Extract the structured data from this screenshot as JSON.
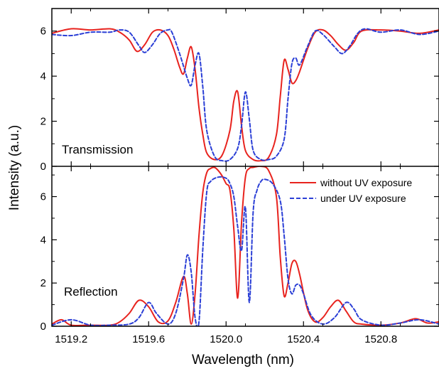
{
  "chart_data": {
    "type": "line",
    "xlabel": "Wavelength (nm)",
    "ylabel": "Intensity (a.u.)",
    "xlim": [
      1519.1,
      1521.1
    ],
    "x_ticks": [
      "1519.2",
      "1519.6",
      "1520.0",
      "1520.4",
      "1520.8"
    ],
    "legend": {
      "placement": "top-right of lower panel",
      "entries": [
        "without UV exposure",
        "under UV exposure"
      ]
    },
    "colors": {
      "without_uv": "#e8231e",
      "under_uv": "#2b3fd6"
    },
    "panels": [
      {
        "label": "Transmission",
        "ylim": [
          0,
          7
        ],
        "y_ticks": [
          "0",
          "2",
          "4",
          "6"
        ],
        "series": [
          {
            "name": "without UV exposure",
            "style": "solid",
            "x": [
              1519.1,
              1519.2,
              1519.3,
              1519.4,
              1519.45,
              1519.5,
              1519.54,
              1519.58,
              1519.62,
              1519.66,
              1519.7,
              1519.73,
              1519.76,
              1519.78,
              1519.8,
              1519.82,
              1519.84,
              1519.86,
              1519.88,
              1519.9,
              1519.94,
              1519.98,
              1520.02,
              1520.04,
              1520.06,
              1520.08,
              1520.1,
              1520.14,
              1520.18,
              1520.22,
              1520.26,
              1520.28,
              1520.3,
              1520.32,
              1520.34,
              1520.36,
              1520.38,
              1520.42,
              1520.46,
              1520.5,
              1520.54,
              1520.58,
              1520.62,
              1520.66,
              1520.7,
              1520.8,
              1520.9,
              1521.0,
              1521.1
            ],
            "y": [
              5.9,
              6.1,
              6.05,
              6.1,
              5.95,
              5.6,
              5.1,
              5.4,
              5.95,
              6.05,
              5.8,
              5.2,
              4.4,
              4.1,
              4.8,
              5.3,
              4.3,
              2.6,
              1.4,
              0.6,
              0.3,
              0.5,
              1.6,
              2.9,
              3.3,
              1.8,
              0.7,
              0.3,
              0.25,
              0.4,
              1.4,
              3.1,
              4.7,
              4.3,
              3.7,
              3.8,
              4.2,
              5.2,
              5.95,
              6.05,
              5.8,
              5.4,
              5.15,
              5.5,
              6.0,
              6.05,
              6.0,
              5.9,
              6.05
            ]
          },
          {
            "name": "under UV exposure",
            "style": "dashed",
            "x": [
              1519.1,
              1519.2,
              1519.3,
              1519.4,
              1519.45,
              1519.5,
              1519.55,
              1519.58,
              1519.62,
              1519.66,
              1519.7,
              1519.72,
              1519.76,
              1519.8,
              1519.82,
              1519.84,
              1519.86,
              1519.88,
              1519.9,
              1519.94,
              1519.98,
              1520.02,
              1520.06,
              1520.08,
              1520.1,
              1520.12,
              1520.14,
              1520.18,
              1520.22,
              1520.26,
              1520.3,
              1520.32,
              1520.34,
              1520.36,
              1520.38,
              1520.42,
              1520.46,
              1520.5,
              1520.56,
              1520.6,
              1520.64,
              1520.68,
              1520.72,
              1520.8,
              1520.9,
              1521.0,
              1521.1
            ],
            "y": [
              5.85,
              5.8,
              5.95,
              5.95,
              6.05,
              5.95,
              5.35,
              5.05,
              5.4,
              5.9,
              6.05,
              5.95,
              5.0,
              3.9,
              3.6,
              4.5,
              5.0,
              3.5,
              1.6,
              0.45,
              0.25,
              0.3,
              0.8,
              1.8,
              3.3,
              2.1,
              0.7,
              0.3,
              0.3,
              0.45,
              1.2,
              3.0,
              4.55,
              4.8,
              4.5,
              5.3,
              6.0,
              5.85,
              5.3,
              5.0,
              5.35,
              5.9,
              6.1,
              5.95,
              6.05,
              5.85,
              6.0
            ]
          }
        ]
      },
      {
        "label": "Reflection",
        "ylim": [
          0,
          7.4
        ],
        "y_ticks": [
          "0",
          "2",
          "4",
          "6"
        ],
        "series": [
          {
            "name": "without UV exposure",
            "style": "solid",
            "x": [
              1519.1,
              1519.15,
              1519.2,
              1519.3,
              1519.4,
              1519.45,
              1519.5,
              1519.55,
              1519.6,
              1519.65,
              1519.7,
              1519.74,
              1519.78,
              1519.8,
              1519.82,
              1519.84,
              1519.86,
              1519.88,
              1519.9,
              1519.92,
              1519.94,
              1519.96,
              1519.98,
              1520.0,
              1520.02,
              1520.04,
              1520.06,
              1520.08,
              1520.1,
              1520.12,
              1520.14,
              1520.18,
              1520.22,
              1520.26,
              1520.28,
              1520.3,
              1520.32,
              1520.34,
              1520.36,
              1520.38,
              1520.42,
              1520.46,
              1520.5,
              1520.54,
              1520.58,
              1520.62,
              1520.66,
              1520.7,
              1520.8,
              1520.9,
              1520.98,
              1521.04,
              1521.1
            ],
            "y": [
              0.1,
              0.3,
              0.05,
              0.05,
              0.05,
              0.2,
              0.6,
              1.2,
              0.9,
              0.2,
              0.25,
              1.1,
              2.3,
              1.5,
              0.1,
              1.5,
              4.2,
              6.2,
              7.1,
              7.3,
              7.35,
              7.2,
              6.95,
              6.6,
              6.3,
              4.5,
              1.3,
              4.8,
              6.9,
              7.3,
              7.35,
              7.4,
              7.2,
              6.0,
              3.2,
              1.4,
              2.0,
              2.9,
              3.0,
              2.4,
              0.8,
              0.2,
              0.4,
              0.9,
              1.2,
              0.7,
              0.2,
              0.1,
              0.05,
              0.15,
              0.35,
              0.15,
              0.2
            ]
          },
          {
            "name": "under UV exposure",
            "style": "dashed",
            "x": [
              1519.1,
              1519.2,
              1519.3,
              1519.4,
              1519.5,
              1519.55,
              1519.6,
              1519.64,
              1519.7,
              1519.74,
              1519.78,
              1519.8,
              1519.82,
              1519.84,
              1519.86,
              1519.88,
              1519.9,
              1519.92,
              1519.96,
              1520.0,
              1520.02,
              1520.04,
              1520.06,
              1520.08,
              1520.1,
              1520.12,
              1520.14,
              1520.16,
              1520.18,
              1520.2,
              1520.24,
              1520.28,
              1520.3,
              1520.32,
              1520.34,
              1520.36,
              1520.38,
              1520.4,
              1520.44,
              1520.5,
              1520.56,
              1520.62,
              1520.66,
              1520.7,
              1520.8,
              1520.9,
              1521.0,
              1521.1
            ],
            "y": [
              0.05,
              0.3,
              0.05,
              0.05,
              0.1,
              0.4,
              1.1,
              0.6,
              0.1,
              0.6,
              2.2,
              3.3,
              2.5,
              0.4,
              0.2,
              3.6,
              6.2,
              6.7,
              6.9,
              6.85,
              6.6,
              6.0,
              4.6,
              3.5,
              5.5,
              1.1,
              5.3,
              6.3,
              6.7,
              6.8,
              6.6,
              5.8,
              4.2,
              2.2,
              1.5,
              1.9,
              1.9,
              1.5,
              0.5,
              0.1,
              0.4,
              1.1,
              0.8,
              0.3,
              0.05,
              0.15,
              0.3,
              0.1
            ]
          }
        ]
      }
    ]
  }
}
